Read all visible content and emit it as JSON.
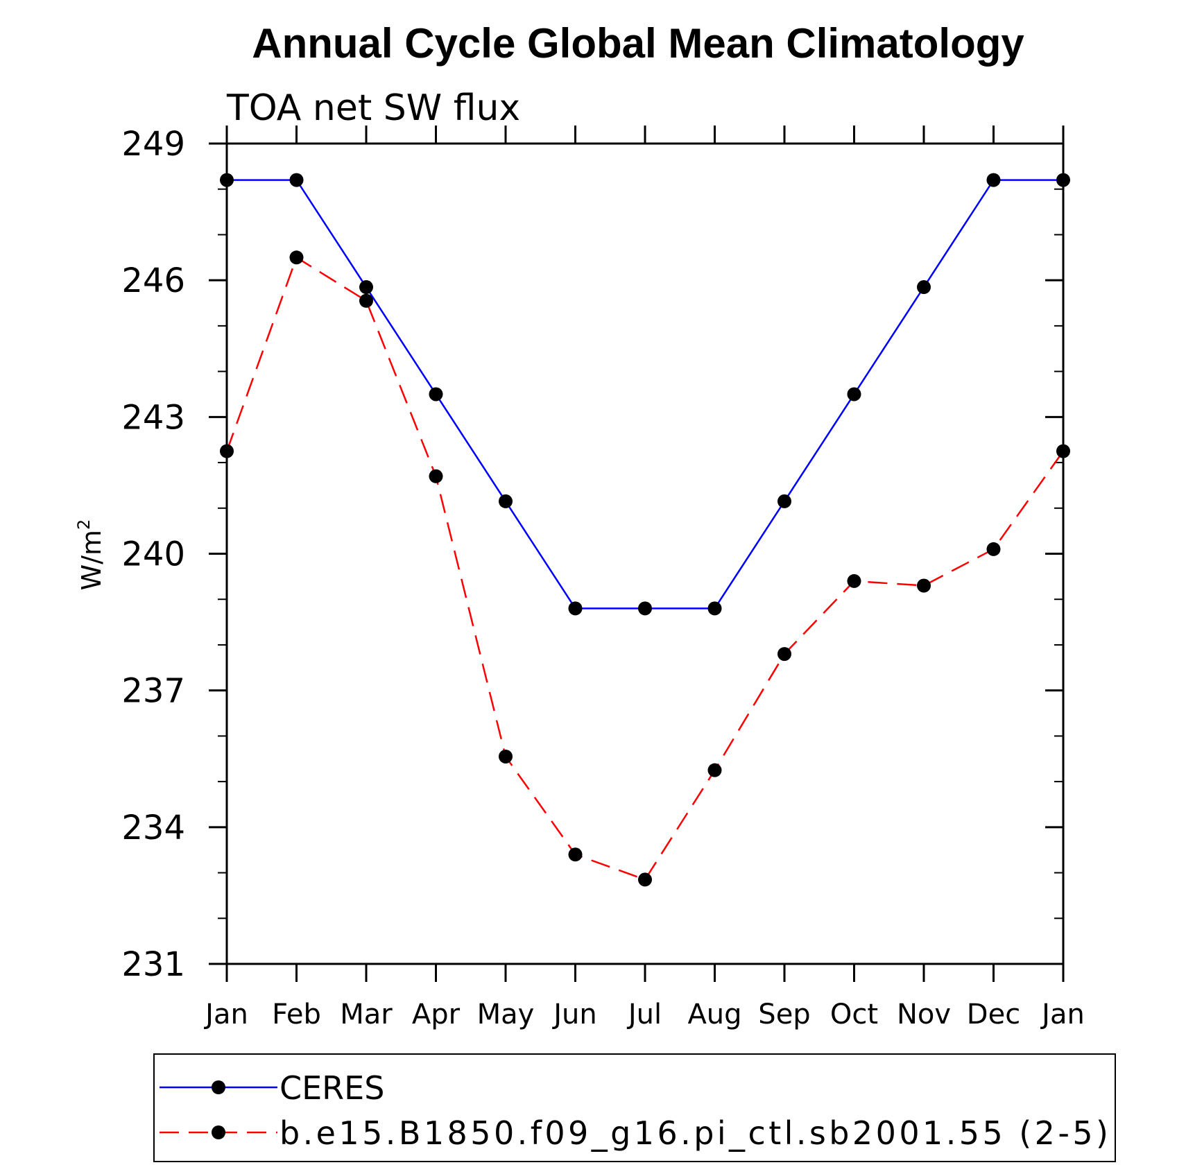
{
  "chart_data": {
    "type": "line",
    "title": "Annual Cycle Global Mean Climatology",
    "subtitle": "TOA net SW flux",
    "xlabel": "",
    "ylabel": "W/m",
    "ylabel_superscript": "2",
    "categories": [
      "Jan",
      "Feb",
      "Mar",
      "Apr",
      "May",
      "Jun",
      "Jul",
      "Aug",
      "Sep",
      "Oct",
      "Nov",
      "Dec",
      "Jan"
    ],
    "ylim": [
      231,
      249
    ],
    "yticks": [
      231,
      234,
      237,
      240,
      243,
      246,
      249
    ],
    "grid": false,
    "legend_position": "bottom",
    "series": [
      {
        "name": "CERES",
        "color": "#0000ff",
        "dash": "solid",
        "marker": "filled-circle",
        "values": [
          248.2,
          248.2,
          245.85,
          243.5,
          241.15,
          238.8,
          238.8,
          238.8,
          241.15,
          243.5,
          245.85,
          248.2,
          248.2
        ]
      },
      {
        "name": "b.e15.B1850.f09_g16.pi_ctl.sb2001.55 (2-5)",
        "color": "#ff0000",
        "dash": "dashed",
        "marker": "filled-circle",
        "values": [
          242.25,
          246.5,
          245.55,
          241.7,
          235.55,
          233.4,
          232.85,
          235.25,
          237.8,
          239.4,
          239.3,
          240.1,
          242.25
        ]
      }
    ]
  }
}
